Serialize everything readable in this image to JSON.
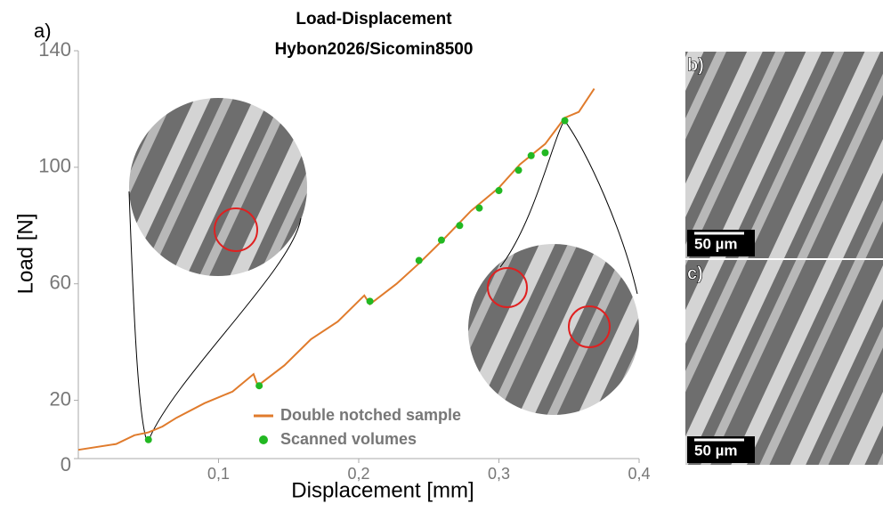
{
  "chart_data": {
    "type": "line",
    "title": "Load-Displacement",
    "subtitle": "Hybon2026/Sicomin8500",
    "panel_labels": [
      "a)",
      "b)",
      "c)"
    ],
    "scale_bars": [
      "50 µm",
      "50 µm"
    ],
    "x_label": "Displacement [mm]",
    "y_label": "Load [N]",
    "xlim": [
      0,
      0.4
    ],
    "ylim": [
      0,
      140
    ],
    "xticks": [
      {
        "value": 0.1,
        "label": "0,1"
      },
      {
        "value": 0.2,
        "label": "0,2"
      },
      {
        "value": 0.3,
        "label": "0,3"
      },
      {
        "value": 0.4,
        "label": "0,4"
      }
    ],
    "yticks": [
      0,
      20,
      60,
      100,
      140
    ],
    "legend": "bottom",
    "series": [
      {
        "name": "Double notched sample",
        "color": "#e07b2c",
        "style": "line",
        "x": [
          0,
          0.027,
          0.04,
          0.05,
          0.06,
          0.07,
          0.09,
          0.11,
          0.125,
          0.128,
          0.147,
          0.166,
          0.185,
          0.204,
          0.208,
          0.227,
          0.243,
          0.262,
          0.28,
          0.3,
          0.315,
          0.333,
          0.347,
          0.357,
          0.368
        ],
        "values": [
          3,
          5,
          8,
          9,
          11,
          14,
          19,
          23,
          29,
          25,
          32,
          41,
          47,
          56,
          53,
          60,
          67,
          76,
          85,
          93,
          101,
          108,
          117,
          119,
          127
        ]
      },
      {
        "name": "Scanned volumes",
        "color": "#22b822",
        "style": "points",
        "x": [
          0.05,
          0.129,
          0.208,
          0.243,
          0.259,
          0.272,
          0.286,
          0.3,
          0.314,
          0.323,
          0.333,
          0.347
        ],
        "values": [
          6.5,
          25,
          54,
          68,
          75,
          80,
          86,
          92,
          99,
          104,
          105,
          116
        ]
      }
    ]
  }
}
